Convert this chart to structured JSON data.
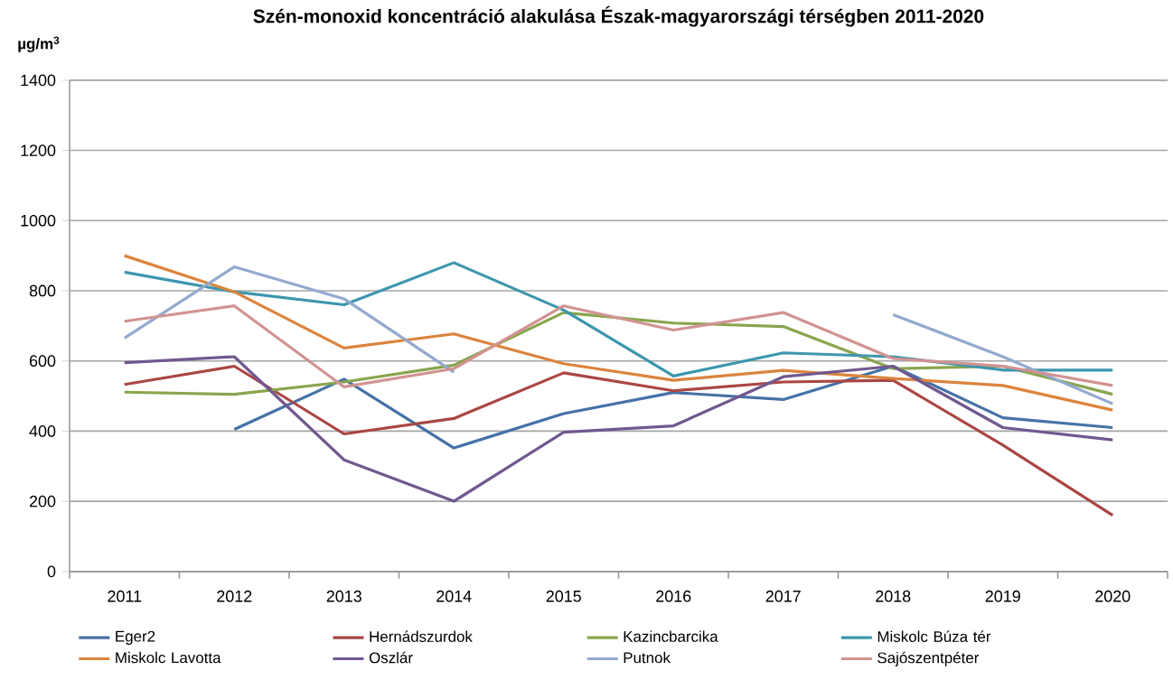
{
  "chart_data": {
    "type": "line",
    "title": "Szén-monoxid koncentráció alakulása Észak-magyarországi térségben 2011-2020",
    "ylabel": "µg/m$^{3}$",
    "categories": [
      "2011",
      "2012",
      "2013",
      "2014",
      "2015",
      "2016",
      "2017",
      "2018",
      "2019",
      "2020"
    ],
    "ylim": [
      0,
      1400
    ],
    "yticks": [
      0,
      200,
      400,
      600,
      800,
      1000,
      1200,
      1400
    ],
    "grid": "y",
    "legend": "bottom",
    "marker": "none",
    "line_style": "solid",
    "series": [
      {
        "name": "Eger2",
        "color": "#4572a7",
        "values": [
          null,
          405,
          548,
          352,
          450,
          510,
          490,
          585,
          438,
          410
        ]
      },
      {
        "name": "Hernádszurdok",
        "color": "#aa4643",
        "values": [
          533,
          585,
          392,
          436,
          566,
          515,
          540,
          545,
          360,
          160
        ]
      },
      {
        "name": "Kazincbarcika",
        "color": "#89a54e",
        "values": [
          511,
          505,
          540,
          588,
          738,
          708,
          698,
          578,
          585,
          505
        ]
      },
      {
        "name": "Miskolc Búza tér",
        "color": "#3d96ae",
        "values": [
          853,
          797,
          760,
          880,
          745,
          557,
          623,
          612,
          574,
          574
        ]
      },
      {
        "name": "Miskolc Lavotta",
        "color": "#db843d",
        "values": [
          900,
          797,
          637,
          677,
          592,
          545,
          573,
          550,
          530,
          460
        ]
      },
      {
        "name": "Oszlár",
        "color": "#71588f",
        "values": [
          595,
          612,
          318,
          200,
          397,
          415,
          555,
          585,
          410,
          375
        ]
      },
      {
        "name": "Putnok",
        "color": "#93a9cf",
        "values": [
          665,
          868,
          777,
          568,
          null,
          null,
          null,
          732,
          612,
          478
        ]
      },
      {
        "name": "Sajószentpéter",
        "color": "#d19392",
        "values": [
          713,
          757,
          526,
          578,
          757,
          688,
          738,
          607,
          585,
          530
        ]
      }
    ]
  }
}
